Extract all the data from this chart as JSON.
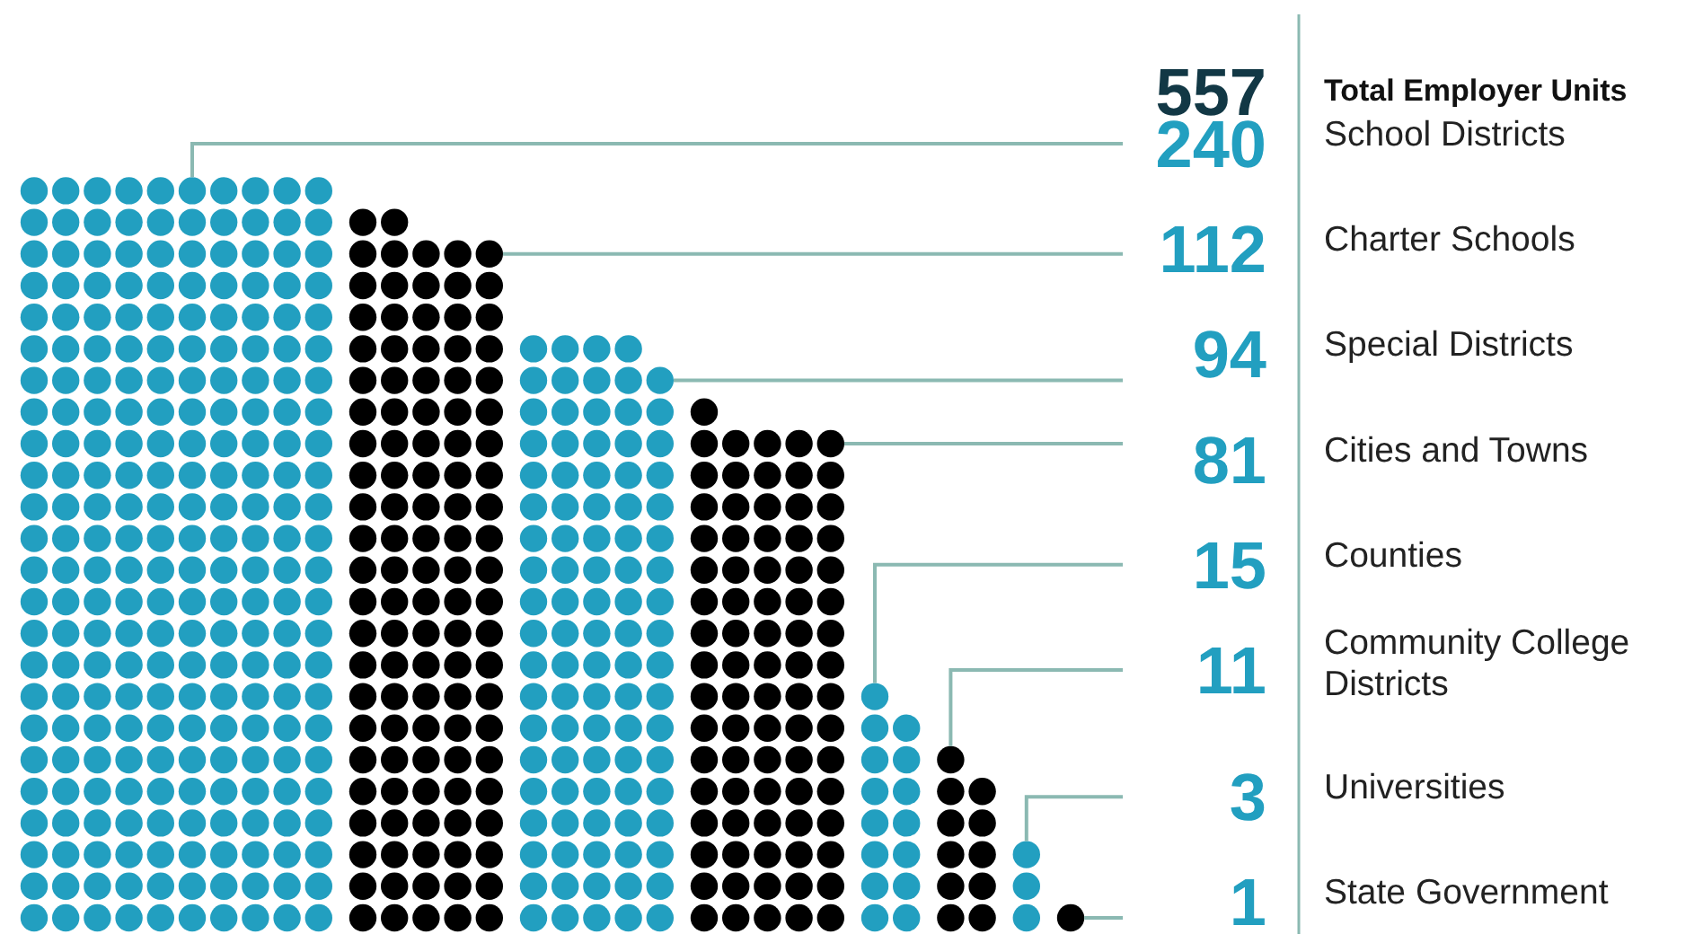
{
  "chart_data": {
    "type": "other",
    "title": "Total Employer Units",
    "annotations": [
      "557"
    ],
    "categories": [
      "School Districts",
      "Charter Schools",
      "Special Districts",
      "Cities and Towns",
      "Counties",
      "Community College Districts",
      "Universities",
      "State Government"
    ],
    "values": [
      240,
      112,
      94,
      81,
      15,
      11,
      3,
      1
    ],
    "colors": [
      "#229fc0",
      "#000000",
      "#229fc0",
      "#000000",
      "#229fc0",
      "#000000",
      "#229fc0",
      "#000000"
    ],
    "data_labels": true
  }
}
